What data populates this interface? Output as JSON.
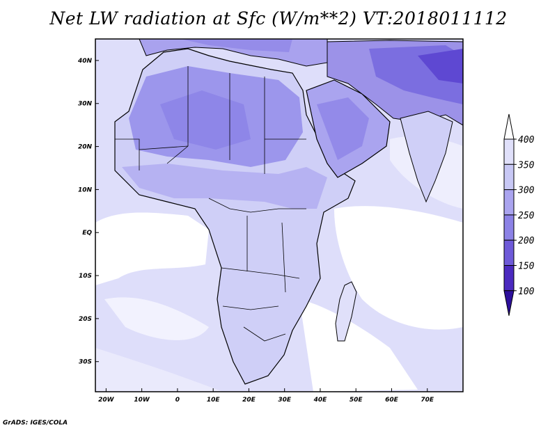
{
  "title": "Net LW radiation at Sfc (W/m**2) VT:2018011112",
  "credit": "GrADS: IGES/COLA",
  "map": {
    "lon_range": [
      -23,
      80
    ],
    "lat_range": [
      -37,
      45
    ],
    "lon_ticks": [
      {
        "value": -20,
        "label": "20W"
      },
      {
        "value": -10,
        "label": "10W"
      },
      {
        "value": 0,
        "label": "0"
      },
      {
        "value": 10,
        "label": "10E"
      },
      {
        "value": 20,
        "label": "20E"
      },
      {
        "value": 30,
        "label": "30E"
      },
      {
        "value": 40,
        "label": "40E"
      },
      {
        "value": 50,
        "label": "50E"
      },
      {
        "value": 60,
        "label": "60E"
      },
      {
        "value": 70,
        "label": "70E"
      }
    ],
    "lat_ticks": [
      {
        "value": 40,
        "label": "40N"
      },
      {
        "value": 30,
        "label": "30N"
      },
      {
        "value": 20,
        "label": "20N"
      },
      {
        "value": 10,
        "label": "10N"
      },
      {
        "value": 0,
        "label": "EQ"
      },
      {
        "value": -10,
        "label": "10S"
      },
      {
        "value": -20,
        "label": "20S"
      },
      {
        "value": -30,
        "label": "30S"
      }
    ]
  },
  "colorbar": {
    "levels": [
      "400",
      "350",
      "300",
      "250",
      "200",
      "150",
      "100"
    ],
    "colors": [
      "#ffffff",
      "#e0e0fa",
      "#c8c8f5",
      "#aaa4ef",
      "#8c82e6",
      "#6e5ad8",
      "#4b2abf",
      "#2d0f9c"
    ]
  }
}
